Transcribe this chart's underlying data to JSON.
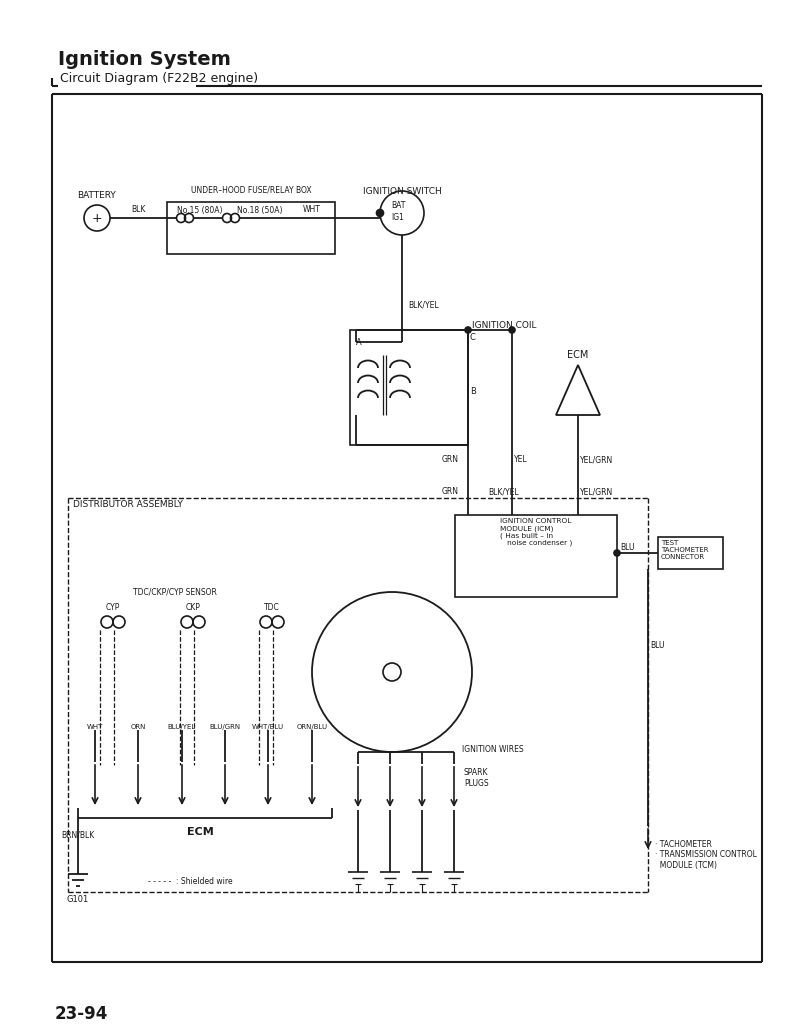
{
  "title": "Ignition System",
  "subtitle": "  Circuit Diagram (F22B2 engine)",
  "page_number": "23-94",
  "bg_color": "#ffffff",
  "lc": "#1a1a1a",
  "battery": "BATTERY",
  "fuse_box": "UNDER–HOOD FUSE/RELAY BOX",
  "fuse1": "No.15 (80A)",
  "fuse2": "No.18 (50A)",
  "blk": "BLK",
  "wht": "WHT",
  "ignition_switch": "IGNITION SWITCH",
  "bat": "BAT",
  "ig1": "IG1",
  "blk_yel": "BLK/YEL",
  "ignition_coil": "IGNITION COIL",
  "coil_a": "A",
  "coil_b": "B",
  "coil_c": "C",
  "ecm_tri": "ECM",
  "grn": "GRN",
  "yel": "YEL",
  "yel_grn": "YEL/GRN",
  "distributor": "DISTRIBUTOR ASSEMBLY",
  "tdc_sensor": "TDC/CKP/CYP SENSOR",
  "cyp": "CYP",
  "ckp": "CKP",
  "tdc": "TDC",
  "orn": "ORN",
  "blu_grn": "BLU/GRN",
  "orn_blu": "ORN/BLU",
  "wht_label": "WHT",
  "blu_yel": "BLU/YEL",
  "wht_blu": "WHT/BLU",
  "ecm_label": "ECM",
  "brn_blk": "BRN/BLK",
  "g101": "G101",
  "ignition_wires": "IGNITION WIRES",
  "spark_plugs": "SPARK\nPLUGS",
  "blu": "BLU",
  "test_conn": "TEST\nTACHOMETER\nCONNECTOR",
  "tacho": "· TACHOMETER\n· TRANSMISSION CONTROL\n  MODULE (TCM)",
  "icm_label": "IGNITION CONTROL\nMODULE (ICM)\n( Has built – in\n   noise condenser )",
  "shielded": "- - - - -  : Shielded wire",
  "grn2": "GRN",
  "blk_yel2": "BLK/YEL",
  "yel_grn2": "YEL/GRN"
}
